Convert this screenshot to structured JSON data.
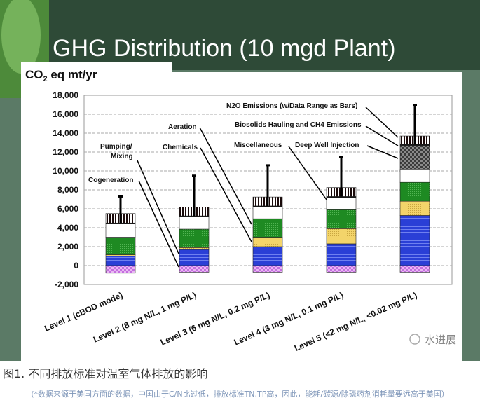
{
  "chart_data": {
    "type": "bar",
    "stacked": true,
    "title": "GHG Distribution (10 mgd Plant)",
    "ylabel": "CO2 eq mt/yr",
    "xlabel": "",
    "ylim": [
      -2000,
      18000
    ],
    "yticks": [
      -2000,
      0,
      2000,
      4000,
      6000,
      8000,
      10000,
      12000,
      14000,
      16000,
      18000
    ],
    "ytick_labels": [
      "-2,000",
      "0",
      "2,000",
      "4,000",
      "6,000",
      "8,000",
      "10,000",
      "12,000",
      "14,000",
      "16,000",
      "18,000"
    ],
    "grid": true,
    "categories": [
      "Level 1 (cBOD mode)",
      "Level 2 (8 mg N/L, 1 mg P/L)",
      "Level 3 (6 mg N/L, 0.2 mg P/L)",
      "Level 4 (3 mg N/L, 0.1 mg P/L)",
      "Level 5 (<2 mg N/L, <0.02 mg P/L)"
    ],
    "series": [
      {
        "name": "Cogeneration",
        "color": "#c46ee0",
        "values": [
          -800,
          -700,
          -700,
          -700,
          -700
        ]
      },
      {
        "name": "Pumping/ Mixing",
        "color": "#2a3fd6",
        "values": [
          1000,
          1700,
          2000,
          2300,
          5300
        ]
      },
      {
        "name": "Chemicals",
        "color": "#f3d46a",
        "values": [
          150,
          200,
          1000,
          1600,
          1500
        ]
      },
      {
        "name": "Aeration",
        "color": "#1e8a22",
        "values": [
          1850,
          1950,
          1950,
          2000,
          2000
        ]
      },
      {
        "name": "Miscellaneous",
        "color": "#ffffff",
        "values": [
          1400,
          1300,
          1250,
          1300,
          1400
        ]
      },
      {
        "name": "Deep Well Injection",
        "color": "#555555",
        "values": [
          0,
          0,
          0,
          0,
          2500
        ]
      },
      {
        "name": "Biosolids Hauling and CH4 Emissions",
        "color": "#111111",
        "values": [
          100,
          100,
          100,
          100,
          100
        ]
      },
      {
        "name": "N2O Emissions (w/Data Range as Bars)",
        "color": "#5a2020",
        "values": [
          1000,
          950,
          950,
          950,
          900
        ]
      }
    ],
    "n2o_range_high": [
      7300,
      9500,
      10600,
      11500,
      17000
    ],
    "annotations": {
      "n2o": "N2O Emissions (w/Data Range as Bars)",
      "biosolids": "Biosolids Hauling and CH4 Emissions",
      "misc": "Miscellaneous",
      "deepwell": "Deep Well Injection",
      "aeration": "Aeration",
      "chemicals": "Chemicals",
      "pumping1": "Pumping/",
      "pumping2": "Mixing",
      "cogeneration": "Cogeneration"
    }
  },
  "slide": {
    "title": "GHG Distribution (10 mgd Plant)",
    "unit_prefix": "CO",
    "unit_sub": "2",
    "unit_suffix": " eq mt/yr",
    "watermark": "水进展"
  },
  "caption": "图1.  不同排放标准对温室气体排放的影响",
  "note": "(*数据来源于美国方面的数据，中国由于C/N比过低，排放标准TN,TP高，因此，能耗/碳源/除磷药剂消耗量要远高于美国）",
  "colors": {
    "slide_green": "#2e4a37",
    "side_green": "#5b7a66"
  }
}
